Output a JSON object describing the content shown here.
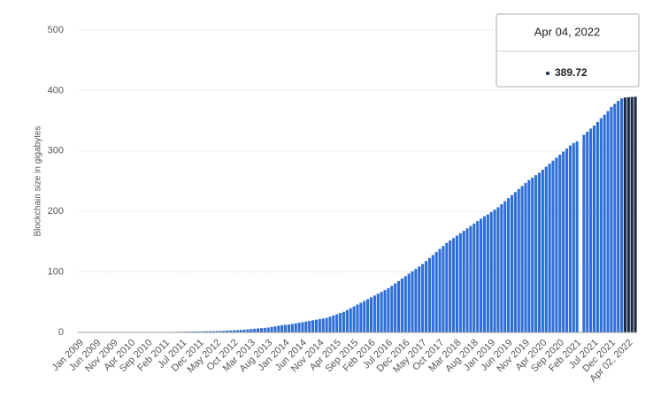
{
  "chart_data": {
    "type": "bar",
    "y_label": "Blockchain size in gigabytes",
    "categories": [
      "Jan 2009",
      null,
      null,
      null,
      null,
      "Jun 2009",
      null,
      null,
      null,
      null,
      "Nov 2009",
      null,
      null,
      null,
      null,
      "Apr 2010",
      null,
      null,
      null,
      null,
      "Sep 2010",
      null,
      null,
      null,
      null,
      "Feb 2011",
      null,
      null,
      null,
      null,
      "Jul 2011",
      null,
      null,
      null,
      null,
      "Dec 2011",
      null,
      null,
      null,
      null,
      "May 2012",
      null,
      null,
      null,
      null,
      "Oct 2012",
      null,
      null,
      null,
      null,
      "Mar 2013",
      null,
      null,
      null,
      null,
      "Aug 2013",
      null,
      null,
      null,
      null,
      "Jan 2014",
      null,
      null,
      null,
      null,
      "Jun 2014",
      null,
      null,
      null,
      null,
      "Nov 2014",
      null,
      null,
      null,
      null,
      "Apr 2015",
      null,
      null,
      null,
      null,
      "Sep 2015",
      null,
      null,
      null,
      null,
      "Feb 2016",
      null,
      null,
      null,
      null,
      "Jul 2016",
      null,
      null,
      null,
      null,
      "Dec 2016",
      null,
      null,
      null,
      null,
      "May 2017",
      null,
      null,
      null,
      null,
      "Oct 2017",
      null,
      null,
      null,
      null,
      "Mar 2018",
      null,
      null,
      null,
      null,
      "Aug 2018",
      null,
      null,
      null,
      null,
      "Jan 2019",
      null,
      null,
      null,
      null,
      "Jun 2019",
      null,
      null,
      null,
      null,
      "Nov 2019",
      null,
      null,
      null,
      null,
      "Apr 2020",
      null,
      null,
      null,
      null,
      "Sep 2020",
      null,
      null,
      null,
      null,
      "Feb 2021",
      null,
      null,
      null,
      null,
      "Jul 2021",
      null,
      null,
      null,
      null,
      "Dec 2021",
      null,
      null,
      null,
      null,
      "Apr 02, 2022",
      null,
      null
    ],
    "values": [
      0,
      0,
      0,
      0,
      0,
      0,
      0,
      0,
      0,
      0,
      0,
      0,
      0,
      0,
      0,
      0,
      0,
      0,
      0,
      0,
      0,
      0,
      0,
      0,
      0.5,
      0.6,
      0.7,
      0.8,
      0.9,
      1,
      1.1,
      1.2,
      1.3,
      1.4,
      1.5,
      1.6,
      1.7,
      1.8,
      1.9,
      2,
      2.2,
      2.4,
      2.6,
      2.9,
      3.2,
      3.5,
      3.8,
      4.1,
      4.5,
      5,
      5.5,
      6,
      6.5,
      7,
      7.5,
      8,
      9,
      10,
      11,
      12,
      12.5,
      13,
      14,
      15,
      16,
      17,
      18,
      19,
      20,
      21,
      22,
      23,
      24,
      26,
      28,
      30,
      32,
      34,
      37,
      40,
      43,
      46,
      49,
      52,
      55,
      58,
      61,
      64,
      67,
      70,
      73,
      77,
      81,
      85,
      89,
      93,
      97,
      101,
      105,
      109,
      113,
      118,
      123,
      128,
      133,
      138,
      143,
      148,
      152,
      156,
      160,
      164,
      168,
      172,
      176,
      180,
      184,
      188,
      192,
      195,
      199,
      203,
      207,
      212,
      217,
      222,
      227,
      232,
      237,
      242,
      247,
      252,
      256,
      260,
      264,
      269,
      274,
      279,
      284,
      289,
      294,
      299,
      304,
      309,
      313,
      316,
      null,
      327,
      332,
      337,
      342,
      348,
      354,
      360,
      366,
      373,
      378,
      383,
      387,
      388.5,
      389,
      389.5,
      389.72
    ],
    "colors": [
      "#2e6fd6",
      "#2e6fd6",
      "#2e6fd6",
      "#2e6fd6",
      "#2e6fd6",
      "#2e6fd6",
      "#2e6fd6",
      "#2e6fd6",
      "#2e6fd6",
      "#2e6fd6",
      "#2e6fd6",
      "#2e6fd6",
      "#2e6fd6",
      "#2e6fd6",
      "#2e6fd6",
      "#2e6fd6",
      "#2e6fd6",
      "#2e6fd6",
      "#2e6fd6",
      "#2e6fd6",
      "#2e6fd6",
      "#2e6fd6",
      "#2e6fd6",
      "#2e6fd6",
      "#2e6fd6",
      "#2e6fd6",
      "#2e6fd6",
      "#2e6fd6",
      "#2e6fd6",
      "#2e6fd6",
      "#2e6fd6",
      "#2e6fd6",
      "#2e6fd6",
      "#2e6fd6",
      "#2e6fd6",
      "#2e6fd6",
      "#2e6fd6",
      "#2e6fd6",
      "#2e6fd6",
      "#2e6fd6",
      "#2e6fd6",
      "#2e6fd6",
      "#2e6fd6",
      "#2e6fd6",
      "#2e6fd6",
      "#2e6fd6",
      "#2e6fd6",
      "#2e6fd6",
      "#2e6fd6",
      "#2e6fd6",
      "#2e6fd6",
      "#2e6fd6",
      "#2e6fd6",
      "#2e6fd6",
      "#2e6fd6",
      "#2e6fd6",
      "#2e6fd6",
      "#2e6fd6",
      "#2e6fd6",
      "#2e6fd6",
      "#2e6fd6",
      "#2e6fd6",
      "#2e6fd6",
      "#2e6fd6",
      "#2e6fd6",
      "#2e6fd6",
      "#2e6fd6",
      "#2e6fd6",
      "#2e6fd6",
      "#2e6fd6",
      "#2e6fd6",
      "#2e6fd6",
      "#2e6fd6",
      "#2e6fd6",
      "#2e6fd6",
      "#2e6fd6",
      "#2e6fd6",
      "#2e6fd6",
      "#2e6fd6",
      "#2e6fd6",
      "#2e6fd6",
      "#2e6fd6",
      "#2e6fd6",
      "#2e6fd6",
      "#2e6fd6",
      "#2e6fd6",
      "#2e6fd6",
      "#2e6fd6",
      "#2e6fd6",
      "#2e6fd6",
      "#2e6fd6",
      "#2e6fd6",
      "#2e6fd6",
      "#2e6fd6",
      "#2e6fd6",
      "#2e6fd6",
      "#2e6fd6",
      "#2e6fd6",
      "#2e6fd6",
      "#2e6fd6",
      "#2e6fd6",
      "#2e6fd6",
      "#2e6fd6",
      "#2e6fd6",
      "#2e6fd6",
      "#2e6fd6",
      "#2e6fd6",
      "#2e6fd6",
      "#2e6fd6",
      "#2e6fd6",
      "#2e6fd6",
      "#2e6fd6",
      "#2e6fd6",
      "#2e6fd6",
      "#2e6fd6",
      "#2e6fd6",
      "#2e6fd6",
      "#2e6fd6",
      "#2e6fd6",
      "#2e6fd6",
      "#2e6fd6",
      "#2e6fd6",
      "#2e6fd6",
      "#2e6fd6",
      "#2e6fd6",
      "#2e6fd6",
      "#2e6fd6",
      "#2e6fd6",
      "#2e6fd6",
      "#2e6fd6",
      "#2e6fd6",
      "#2e6fd6",
      "#2e6fd6",
      "#2e6fd6",
      "#2e6fd6",
      "#2e6fd6",
      "#2e6fd6",
      "#2e6fd6",
      "#2e6fd6",
      "#2e6fd6",
      "#2e6fd6",
      "#2e6fd6",
      "#2e6fd6",
      "#2e6fd6",
      "#2e6fd6",
      "#2e6fd6",
      "#2e6fd6",
      "#2e6fd6",
      "#2e6fd6",
      "#2e6fd6",
      "#2e6fd6",
      "#2e6fd6",
      "#2e6fd6",
      "#2e6fd6",
      "#2e6fd6",
      "#2e6fd6",
      "#2e6fd6",
      "#2e6fd6",
      "#2e6fd6",
      "#1c2b45",
      "#1c2b45",
      "#1c2b45",
      "#1c2b45"
    ],
    "ylim": [
      0,
      500
    ],
    "yticks": [
      0,
      100,
      200,
      300,
      400,
      500
    ],
    "grid": true,
    "tooltip": {
      "label": "Apr 04, 2022",
      "value": 389.72
    }
  }
}
